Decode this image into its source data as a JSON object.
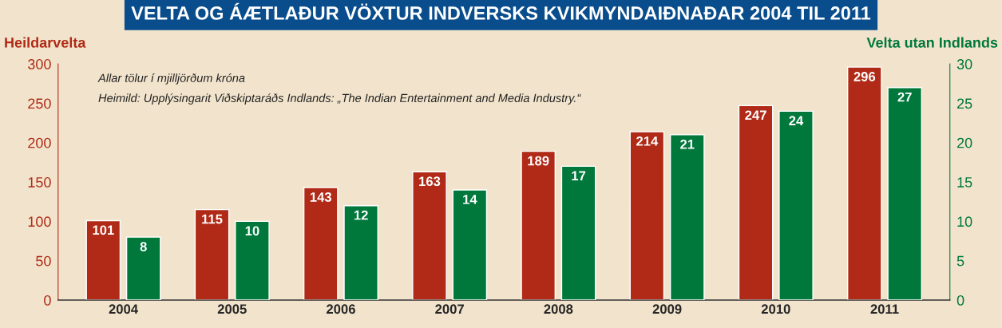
{
  "chart_data": {
    "type": "bar",
    "title": "VELTA OG ÁÆTLAÐUR VÖXTUR INDVERSKS KVIKMYNDAIÐNAÐAR 2004 TIL 2011",
    "ylabel": "Heildarvelta",
    "y2label": "Velta utan Indlands",
    "annotations": [
      "Allar tölur í mjilljörðum króna",
      "Heimild: Upplýsingarit Viðskiptaráðs Indlands: „The Indian Entertainment and Media Industry.“"
    ],
    "categories": [
      "2004",
      "2005",
      "2006",
      "2007",
      "2008",
      "2009",
      "2010",
      "2011"
    ],
    "series": [
      {
        "color": "#b02a17",
        "values": [
          101,
          115,
          143,
          163,
          189,
          214,
          247,
          296
        ]
      },
      {
        "color": "#00783c",
        "axis": "y2",
        "values": [
          8,
          10,
          12,
          14,
          17,
          21,
          24,
          27
        ]
      }
    ],
    "ylim": [
      0,
      300
    ],
    "yticks": [
      0,
      50,
      100,
      150,
      200,
      250,
      300
    ],
    "y2lim": [
      0,
      30
    ],
    "y2ticks": [
      0,
      5,
      10,
      15,
      20,
      25,
      30
    ],
    "data_labels": true,
    "grid": false,
    "legend": false
  }
}
